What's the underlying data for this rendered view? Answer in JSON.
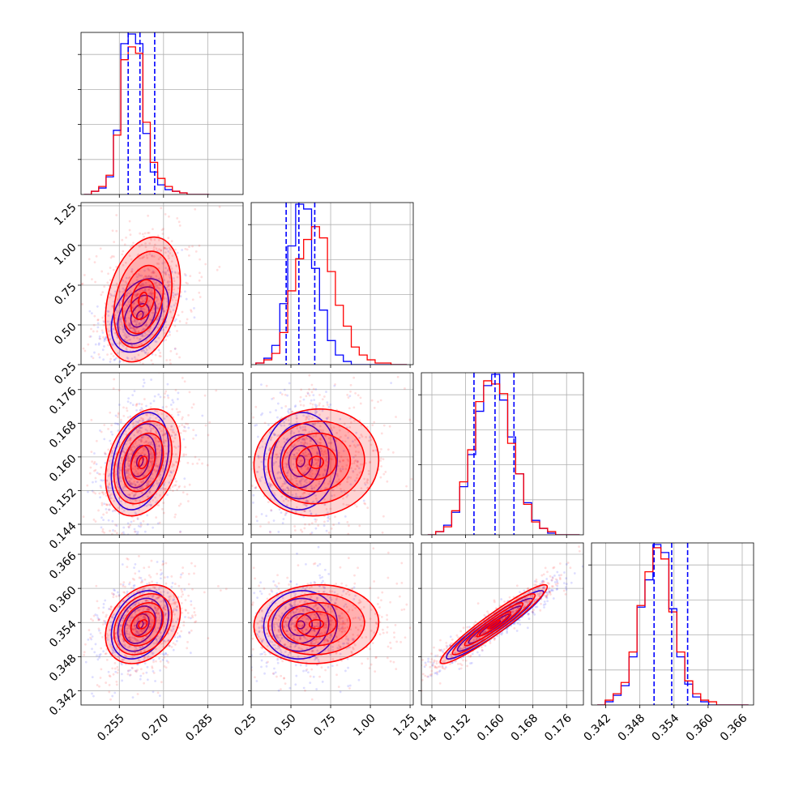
{
  "chart_data": {
    "type": "corner",
    "grid": true,
    "colors": {
      "blue": "#0000ff",
      "red": "#ff0000"
    },
    "series": [
      {
        "color": "#0000ff"
      },
      {
        "color": "#ff0000"
      }
    ],
    "params": [
      {
        "range": [
          0.242,
          0.297
        ],
        "ticks": [
          0.255,
          0.27,
          0.285
        ],
        "tick_labels": [
          "0.255",
          "0.270",
          "0.285"
        ]
      },
      {
        "range": [
          0.25,
          1.27
        ],
        "ticks": [
          0.25,
          0.5,
          0.75,
          1.0,
          1.25
        ],
        "tick_labels": [
          "0.25",
          "0.50",
          "0.75",
          "1.00",
          "1.25"
        ]
      },
      {
        "range": [
          0.1415,
          0.18
        ],
        "ticks": [
          0.144,
          0.152,
          0.16,
          0.168,
          0.176
        ],
        "tick_labels": [
          "0.144",
          "0.152",
          "0.160",
          "0.168",
          "0.176"
        ]
      },
      {
        "range": [
          0.3395,
          0.368
        ],
        "ticks": [
          0.342,
          0.348,
          0.354,
          0.36,
          0.366
        ],
        "tick_labels": [
          "0.342",
          "0.348",
          "0.354",
          "0.360",
          "0.366"
        ]
      }
    ],
    "quantiles_blue": [
      [
        0.258,
        0.262,
        0.267
      ],
      [
        0.47,
        0.55,
        0.65
      ],
      [
        0.154,
        0.159,
        0.1635
      ],
      [
        0.3505,
        0.3536,
        0.3564
      ]
    ],
    "histograms": [
      {
        "bins": [
          0.242,
          0.2475
        ],
        "edges_start": 0.243,
        "edges_step": 0.0025,
        "blue": [
          0.0,
          0.02,
          0.04,
          0.11,
          0.4,
          0.94,
          1.0,
          0.94,
          0.38,
          0.14,
          0.06,
          0.03,
          0.02,
          0.01,
          0.0,
          0.0,
          0.0
        ],
        "red": [
          0.0,
          0.02,
          0.05,
          0.12,
          0.37,
          0.84,
          0.92,
          0.88,
          0.45,
          0.2,
          0.1,
          0.05,
          0.02,
          0.01,
          0.0,
          0.0,
          0.0
        ]
      },
      {
        "edges_start": 0.28,
        "edges_step": 0.05,
        "blue": [
          0.01,
          0.04,
          0.12,
          0.38,
          0.74,
          1.0,
          0.97,
          0.6,
          0.34,
          0.15,
          0.06,
          0.02,
          0.0,
          0.0,
          0.0,
          0.0,
          0.0,
          0.0,
          0.0
        ],
        "red": [
          0.01,
          0.03,
          0.07,
          0.2,
          0.46,
          0.66,
          0.78,
          0.86,
          0.79,
          0.58,
          0.37,
          0.24,
          0.11,
          0.06,
          0.03,
          0.01,
          0.01,
          0.0,
          0.0
        ]
      },
      {
        "edges_start": 0.143,
        "edges_step": 0.0019,
        "blue": [
          0.0,
          0.02,
          0.06,
          0.14,
          0.3,
          0.5,
          0.77,
          0.93,
          1.0,
          0.84,
          0.61,
          0.38,
          0.2,
          0.09,
          0.04,
          0.01,
          0.0,
          0.0,
          0.0
        ],
        "red": [
          0.0,
          0.02,
          0.05,
          0.15,
          0.33,
          0.53,
          0.83,
          0.96,
          0.94,
          0.88,
          0.57,
          0.38,
          0.19,
          0.08,
          0.04,
          0.02,
          0.0,
          0.0,
          0.0
        ]
      },
      {
        "edges_start": 0.3405,
        "edges_step": 0.0014,
        "blue": [
          0.0,
          0.02,
          0.06,
          0.12,
          0.3,
          0.61,
          0.78,
          1.0,
          0.95,
          0.6,
          0.3,
          0.13,
          0.05,
          0.02,
          0.0,
          0.0,
          0.0,
          0.0,
          0.0
        ],
        "red": [
          0.0,
          0.03,
          0.07,
          0.14,
          0.33,
          0.62,
          0.83,
          0.98,
          0.91,
          0.58,
          0.33,
          0.15,
          0.07,
          0.03,
          0.02,
          0.0,
          0.0,
          0.0,
          0.0
        ]
      }
    ],
    "joint": {
      "blue": {
        "mean": [
          0.262,
          0.56,
          0.159,
          0.3536
        ],
        "sd": [
          0.0042,
          0.1,
          0.005,
          0.0026
        ],
        "corr": [
          [
            1,
            0.35,
            0.3,
            0.3
          ],
          [
            0.35,
            1,
            0.05,
            0.05
          ],
          [
            0.3,
            0.05,
            1,
            0.95
          ],
          [
            0.3,
            0.05,
            0.95,
            1
          ]
        ]
      },
      "red": {
        "mean": [
          0.263,
          0.66,
          0.1587,
          0.3537
        ],
        "sd": [
          0.0055,
          0.17,
          0.0055,
          0.003
        ],
        "corr": [
          [
            1,
            0.3,
            0.3,
            0.3
          ],
          [
            0.3,
            1,
            0.05,
            0.05
          ],
          [
            0.3,
            0.05,
            1,
            0.95
          ],
          [
            0.3,
            0.05,
            0.95,
            1
          ]
        ]
      }
    }
  }
}
